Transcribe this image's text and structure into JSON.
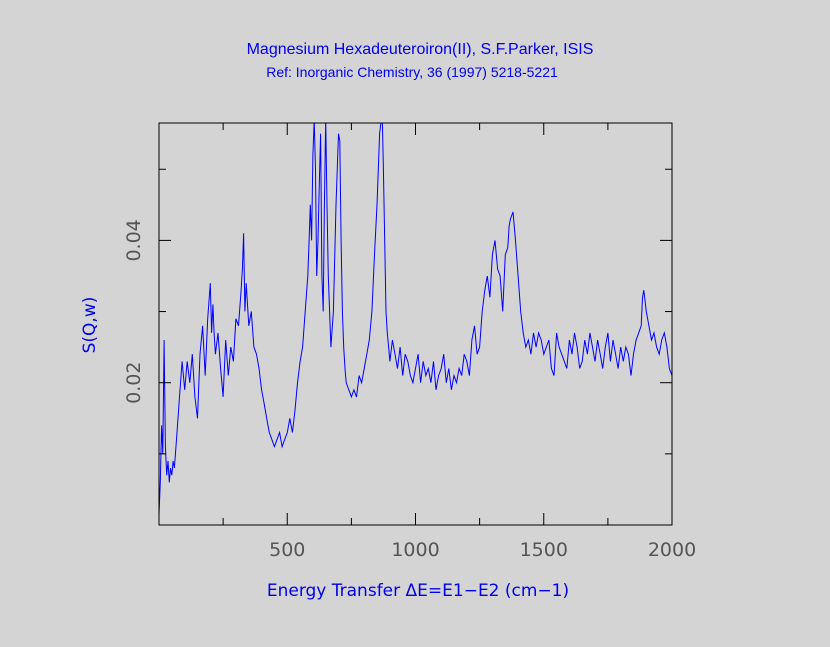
{
  "chart_data": {
    "type": "line",
    "title": "Magnesium Hexadeuteroiron(II), S.F.Parker, ISIS",
    "subtitle": "Ref: Inorganic Chemistry, 36 (1997) 5218-5221",
    "xlabel": "Energy Transfer ΔE=E1−E2 (cm−1)",
    "ylabel": "S(Q,w)",
    "xlim": [
      0,
      2000
    ],
    "ylim": [
      0.0,
      0.0565
    ],
    "xticks": [
      500,
      1000,
      1500,
      2000
    ],
    "yticks": [
      0.02,
      0.04
    ],
    "grid": false,
    "colors": {
      "line": "#0000ff",
      "text": "#0000ee",
      "ticks": "#555555",
      "frame": "#000000",
      "background": "#d4d4d4"
    },
    "series": [
      {
        "x": [
          0,
          5,
          10,
          15,
          20,
          25,
          30,
          35,
          40,
          45,
          50,
          55,
          60,
          70,
          80,
          90,
          100,
          110,
          120,
          130,
          140,
          150,
          160,
          170,
          180,
          190,
          200,
          205,
          210,
          215,
          220,
          230,
          240,
          250,
          260,
          270,
          280,
          290,
          300,
          310,
          320,
          325,
          330,
          335,
          340,
          350,
          360,
          370,
          380,
          390,
          400,
          410,
          420,
          430,
          440,
          450,
          460,
          470,
          480,
          490,
          500,
          510,
          520,
          530,
          540,
          550,
          560,
          570,
          580,
          585,
          590,
          595,
          600,
          605,
          610,
          615,
          620,
          625,
          630,
          635,
          640,
          645,
          650,
          655,
          660,
          665,
          670,
          680,
          690,
          700,
          705,
          710,
          715,
          720,
          725,
          730,
          740,
          750,
          760,
          770,
          780,
          790,
          800,
          810,
          820,
          830,
          840,
          850,
          860,
          870,
          875,
          880,
          885,
          890,
          895,
          900,
          910,
          920,
          930,
          940,
          950,
          960,
          970,
          980,
          990,
          1000,
          1010,
          1020,
          1030,
          1040,
          1050,
          1060,
          1070,
          1080,
          1090,
          1100,
          1110,
          1120,
          1130,
          1140,
          1150,
          1160,
          1170,
          1180,
          1190,
          1200,
          1210,
          1220,
          1230,
          1240,
          1250,
          1260,
          1270,
          1280,
          1290,
          1300,
          1310,
          1320,
          1330,
          1340,
          1350,
          1360,
          1365,
          1370,
          1380,
          1390,
          1400,
          1410,
          1420,
          1430,
          1440,
          1450,
          1460,
          1470,
          1480,
          1490,
          1500,
          1510,
          1520,
          1530,
          1540,
          1550,
          1560,
          1570,
          1580,
          1590,
          1600,
          1610,
          1620,
          1630,
          1640,
          1650,
          1660,
          1670,
          1680,
          1690,
          1700,
          1710,
          1720,
          1730,
          1740,
          1750,
          1760,
          1770,
          1780,
          1790,
          1800,
          1810,
          1820,
          1830,
          1840,
          1850,
          1860,
          1870,
          1880,
          1885,
          1890,
          1900,
          1910,
          1920,
          1930,
          1940,
          1950,
          1960,
          1970,
          1980,
          1990,
          2000
        ],
        "y": [
          0.0015,
          0.006,
          0.014,
          0.01,
          0.026,
          0.011,
          0.007,
          0.009,
          0.006,
          0.008,
          0.007,
          0.009,
          0.008,
          0.013,
          0.018,
          0.023,
          0.019,
          0.023,
          0.02,
          0.024,
          0.018,
          0.015,
          0.024,
          0.028,
          0.021,
          0.029,
          0.034,
          0.027,
          0.031,
          0.027,
          0.024,
          0.027,
          0.022,
          0.018,
          0.026,
          0.021,
          0.025,
          0.023,
          0.029,
          0.028,
          0.033,
          0.036,
          0.041,
          0.03,
          0.034,
          0.028,
          0.03,
          0.025,
          0.024,
          0.022,
          0.019,
          0.017,
          0.015,
          0.013,
          0.012,
          0.011,
          0.012,
          0.013,
          0.011,
          0.012,
          0.013,
          0.015,
          0.013,
          0.016,
          0.02,
          0.023,
          0.025,
          0.03,
          0.035,
          0.04,
          0.045,
          0.04,
          0.052,
          0.057,
          0.05,
          0.035,
          0.04,
          0.048,
          0.055,
          0.035,
          0.03,
          0.045,
          0.057,
          0.045,
          0.035,
          0.03,
          0.025,
          0.03,
          0.045,
          0.055,
          0.054,
          0.04,
          0.03,
          0.025,
          0.022,
          0.02,
          0.019,
          0.018,
          0.019,
          0.018,
          0.021,
          0.02,
          0.022,
          0.024,
          0.026,
          0.03,
          0.038,
          0.045,
          0.055,
          0.058,
          0.05,
          0.04,
          0.03,
          0.027,
          0.025,
          0.023,
          0.026,
          0.024,
          0.022,
          0.025,
          0.021,
          0.024,
          0.023,
          0.021,
          0.02,
          0.022,
          0.024,
          0.02,
          0.023,
          0.021,
          0.022,
          0.02,
          0.023,
          0.019,
          0.021,
          0.022,
          0.024,
          0.02,
          0.022,
          0.019,
          0.021,
          0.02,
          0.022,
          0.021,
          0.024,
          0.023,
          0.021,
          0.026,
          0.028,
          0.024,
          0.025,
          0.03,
          0.033,
          0.035,
          0.032,
          0.038,
          0.04,
          0.036,
          0.035,
          0.03,
          0.038,
          0.039,
          0.042,
          0.043,
          0.044,
          0.04,
          0.035,
          0.03,
          0.027,
          0.025,
          0.026,
          0.024,
          0.027,
          0.025,
          0.027,
          0.026,
          0.024,
          0.025,
          0.026,
          0.022,
          0.021,
          0.027,
          0.025,
          0.024,
          0.023,
          0.022,
          0.026,
          0.024,
          0.027,
          0.025,
          0.022,
          0.023,
          0.026,
          0.024,
          0.027,
          0.025,
          0.023,
          0.026,
          0.024,
          0.022,
          0.025,
          0.027,
          0.023,
          0.026,
          0.024,
          0.022,
          0.025,
          0.023,
          0.025,
          0.024,
          0.021,
          0.024,
          0.026,
          0.027,
          0.028,
          0.032,
          0.033,
          0.03,
          0.028,
          0.026,
          0.027,
          0.025,
          0.024,
          0.026,
          0.027,
          0.025,
          0.022,
          0.021
        ]
      }
    ]
  }
}
